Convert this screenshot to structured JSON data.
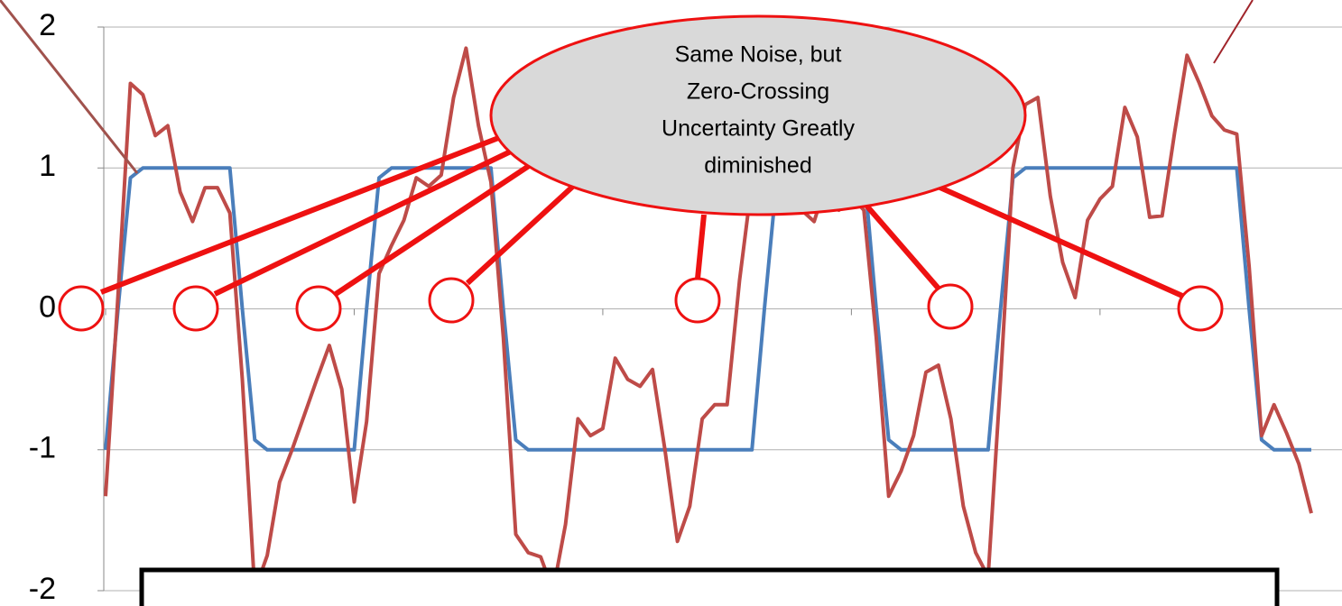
{
  "chart_data": {
    "type": "line",
    "annotation": [
      "Same Noise, but",
      "Zero-Crossing",
      "Uncertainty Greatly",
      "diminished"
    ],
    "series": [
      {
        "color": "#4a7ebb",
        "values": [
          -1,
          0,
          0.93,
          1,
          1,
          1,
          1,
          1,
          1,
          1,
          1,
          0,
          -0.93,
          -1,
          -1,
          -1,
          -1,
          -1,
          -1,
          -1,
          -1,
          0,
          0.93,
          1,
          1,
          1,
          1,
          1,
          1,
          1,
          1,
          1,
          0,
          -0.93,
          -1,
          -1,
          -1,
          -1,
          -1,
          -1,
          -1,
          -1,
          -1,
          -1,
          -1,
          -1,
          -1,
          -1,
          -1,
          -1,
          -1,
          -1,
          -1,
          0,
          0.93,
          1,
          1,
          1,
          1,
          1,
          1,
          1,
          0,
          -0.93,
          -1,
          -1,
          -1,
          -1,
          -1,
          -1,
          -1,
          -1,
          0,
          0.93,
          1,
          1,
          1,
          1,
          1,
          1,
          1,
          1,
          1,
          1,
          1,
          1,
          1,
          1,
          1,
          1,
          1,
          1,
          0,
          -0.93,
          -1,
          -1,
          -1,
          -1
        ]
      },
      {
        "color": "#be4b48",
        "values": [
          -1.33,
          0.1,
          1.6,
          1.52,
          1.23,
          1.3,
          0.83,
          0.62,
          0.86,
          0.86,
          0.68,
          -0.5,
          -2.0,
          -1.75,
          -1.23,
          -1.0,
          -0.75,
          -0.5,
          -0.26,
          -0.57,
          -1.37,
          -0.8,
          0.25,
          0.45,
          0.63,
          0.93,
          0.87,
          0.95,
          1.5,
          1.85,
          1.3,
          0.9,
          -0.2,
          -1.6,
          -1.73,
          -1.76,
          -2.0,
          -1.53,
          -0.78,
          -0.9,
          -0.85,
          -0.35,
          -0.5,
          -0.55,
          -0.43,
          -1.0,
          -1.65,
          -1.4,
          -0.78,
          -0.68,
          -0.68,
          0.2,
          0.9,
          1.0,
          0.9,
          0.8,
          0.7,
          0.62,
          0.9,
          0.7,
          0.8,
          0.7,
          -0.2,
          -1.33,
          -1.15,
          -0.9,
          -0.45,
          -0.4,
          -0.78,
          -1.4,
          -1.73,
          -1.9,
          -0.5,
          1.0,
          1.45,
          1.5,
          0.8,
          0.33,
          0.08,
          0.63,
          0.78,
          0.87,
          1.43,
          1.22,
          0.65,
          0.66,
          1.25,
          1.8,
          1.6,
          1.37,
          1.27,
          1.24,
          0.3,
          -0.9,
          -0.68,
          -0.88,
          -1.1,
          -1.45
        ]
      }
    ],
    "ylim": [
      -2,
      2
    ],
    "yticks": [
      -2,
      -1,
      0,
      1,
      2
    ],
    "grid": true
  }
}
